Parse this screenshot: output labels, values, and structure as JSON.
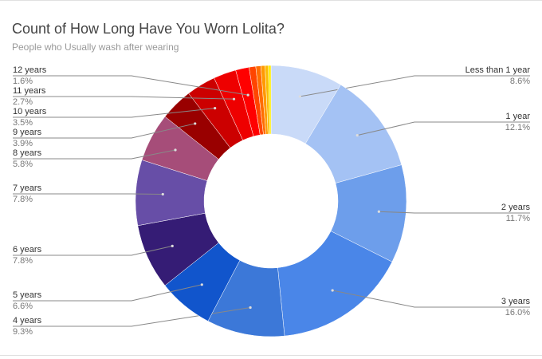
{
  "chart_data": {
    "type": "donut",
    "title": "Count of How Long Have You Worn Lolita?",
    "subtitle": "People who Usually wash after wearing",
    "categories": [
      "Less than 1 year",
      "1 year",
      "2 years",
      "3 years",
      "4 years",
      "5 years",
      "6 years",
      "7 years",
      "8 years",
      "9 years",
      "10 years",
      "11 years",
      "12 years",
      null,
      null,
      null,
      null,
      null
    ],
    "values": [
      8.6,
      12.1,
      11.7,
      16.0,
      9.3,
      6.6,
      7.8,
      7.8,
      5.8,
      3.9,
      3.5,
      2.7,
      1.6,
      0.8,
      0.6,
      0.5,
      0.4,
      0.3
    ],
    "value_labels": [
      "8.6%",
      "12.1%",
      "11.7%",
      "16.0%",
      "9.3%",
      "6.6%",
      "7.8%",
      "7.8%",
      "5.8%",
      "3.9%",
      "3.5%",
      "2.7%",
      "1.6%",
      null,
      null,
      null,
      null,
      null
    ],
    "colors": [
      "#c9daf8",
      "#a4c2f4",
      "#6d9eeb",
      "#4a86e8",
      "#3c78d8",
      "#1155cc",
      "#351c75",
      "#674ea7",
      "#a64d79",
      "#990000",
      "#cc0000",
      "#ee0000",
      "#ff0000",
      "#ff4500",
      "#ff6d01",
      "#ff9900",
      "#fbbc04",
      "#ffee00"
    ]
  }
}
